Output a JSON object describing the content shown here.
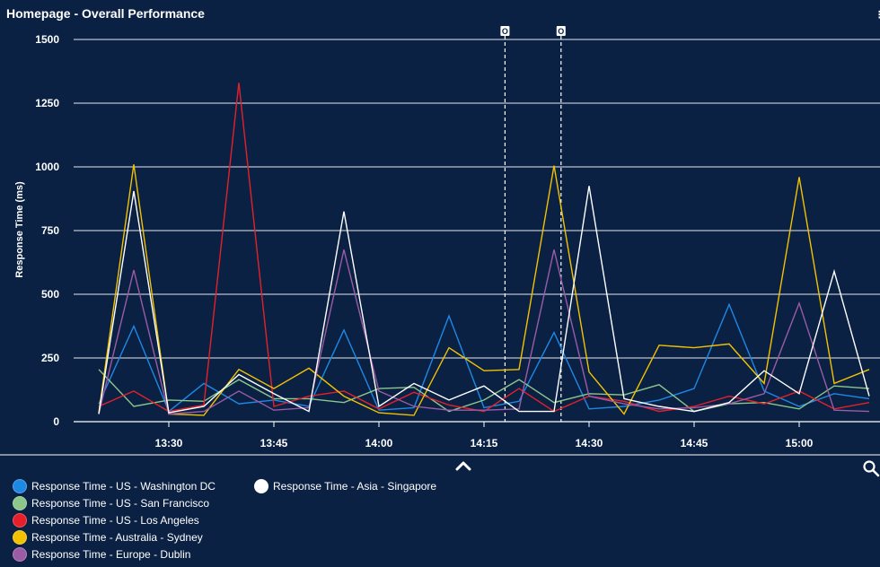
{
  "header": {
    "title": "Homepage - Overall Performance"
  },
  "chart_data": {
    "type": "line",
    "title": "Homepage - Overall Performance",
    "ylabel": "Response Time (ms)",
    "xlabel": "",
    "ylim": [
      0,
      1500
    ],
    "y_ticks": [
      0,
      250,
      500,
      750,
      1000,
      1250,
      1500
    ],
    "x_ticks": [
      "13:30",
      "13:45",
      "14:00",
      "14:15",
      "14:30",
      "14:45",
      "15:00"
    ],
    "grid": true,
    "legend_position": "bottom-left",
    "x_times": [
      "13:20",
      "13:25",
      "13:30",
      "13:35",
      "13:40",
      "13:45",
      "13:50",
      "13:55",
      "14:00",
      "14:05",
      "14:10",
      "14:15",
      "14:20",
      "14:25",
      "14:30",
      "14:35",
      "14:40",
      "14:45",
      "14:50",
      "14:55",
      "15:00",
      "15:05",
      "15:10"
    ],
    "series": [
      {
        "name": "Response Time - US - Washington DC",
        "color": "#1e88e5",
        "values": [
          70,
          375,
          40,
          150,
          70,
          85,
          60,
          360,
          45,
          55,
          415,
          55,
          80,
          350,
          50,
          60,
          85,
          130,
          460,
          120,
          60,
          110,
          90
        ]
      },
      {
        "name": "Response Time - US - San Francisco",
        "color": "#8cc68a",
        "values": [
          205,
          60,
          85,
          80,
          165,
          90,
          90,
          75,
          130,
          135,
          40,
          85,
          165,
          75,
          110,
          105,
          145,
          40,
          70,
          75,
          50,
          140,
          130
        ]
      },
      {
        "name": "Response Time - US - Los Angeles",
        "color": "#e5202a",
        "values": [
          60,
          120,
          40,
          65,
          1330,
          60,
          100,
          120,
          50,
          115,
          65,
          40,
          130,
          40,
          100,
          80,
          40,
          60,
          100,
          70,
          120,
          50,
          75
        ]
      },
      {
        "name": "Response Time - Australia - Sydney",
        "color": "#f2c200",
        "values": [
          35,
          1010,
          30,
          25,
          205,
          130,
          210,
          100,
          35,
          25,
          290,
          200,
          205,
          1005,
          195,
          30,
          300,
          290,
          305,
          150,
          960,
          150,
          205
        ]
      },
      {
        "name": "Response Time - Europe - Dublin",
        "color": "#9b5ba5",
        "values": [
          30,
          595,
          30,
          40,
          120,
          45,
          55,
          675,
          120,
          60,
          45,
          45,
          50,
          675,
          100,
          70,
          50,
          55,
          70,
          110,
          465,
          45,
          40
        ]
      },
      {
        "name": "Response Time - Asia - Singapore",
        "color": "#ffffff",
        "values": [
          30,
          905,
          35,
          60,
          185,
          110,
          40,
          825,
          60,
          150,
          85,
          140,
          40,
          40,
          925,
          90,
          60,
          40,
          75,
          200,
          110,
          590,
          100
        ]
      }
    ],
    "markers": [
      {
        "time": "14:18",
        "label": "O"
      },
      {
        "time": "14:26",
        "label": "O"
      }
    ]
  }
}
